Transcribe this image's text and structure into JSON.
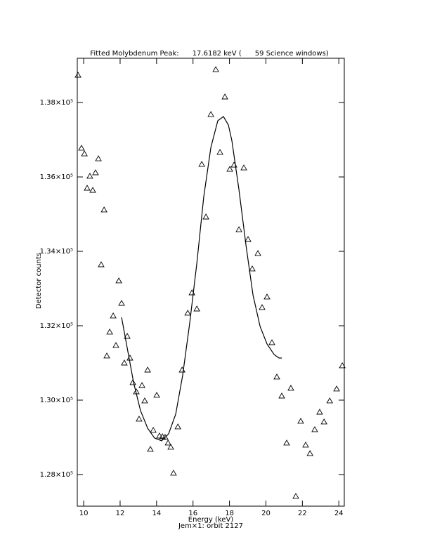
{
  "chart_data": {
    "type": "scatter",
    "title": "Fitted Molybdenum Peak:      17.6182 keV (      59 Science windows)",
    "x_label": "Energy (keV)",
    "subtitle": "Jem×1: orbit 2127",
    "y_label": "Detector counts",
    "xlim": [
      9.65,
      24.3
    ],
    "ylim": [
      127150,
      139190
    ],
    "xticks": [
      10,
      12,
      14,
      16,
      18,
      20,
      22,
      24
    ],
    "yticks": [
      {
        "value": 128000,
        "label": "1.28×10⁵"
      },
      {
        "value": 130000,
        "label": "1.30×10⁵"
      },
      {
        "value": 132000,
        "label": "1.32×10⁵"
      },
      {
        "value": 134000,
        "label": "1.34×10⁵"
      },
      {
        "value": 136000,
        "label": "1.36×10⁵"
      },
      {
        "value": 138000,
        "label": "1.38×10⁵"
      }
    ],
    "grid": false,
    "series": [
      {
        "type": "scatter",
        "marker": "triangle",
        "color": "#000000",
        "x": [
          9.69,
          9.88,
          10.04,
          10.19,
          10.34,
          10.5,
          10.65,
          10.81,
          10.96,
          11.12,
          11.27,
          11.43,
          11.62,
          11.77,
          11.93,
          12.08,
          12.23,
          12.39,
          12.54,
          12.7,
          12.89,
          13.04,
          13.2,
          13.35,
          13.51,
          13.66,
          13.82,
          14.01,
          14.16,
          14.32,
          14.47,
          14.63,
          14.78,
          14.93,
          15.17,
          15.4,
          15.71,
          15.94,
          16.21,
          16.48,
          16.71,
          16.98,
          17.25,
          17.48,
          17.75,
          18.02,
          18.25,
          18.52,
          18.79,
          19.02,
          19.25,
          19.56,
          19.79,
          20.06,
          20.33,
          20.6,
          20.87,
          21.14,
          21.37,
          21.64,
          21.91,
          22.18,
          22.42,
          22.68,
          22.95,
          23.19,
          23.5,
          23.88,
          24.19
        ],
        "values": [
          138737,
          136775,
          136623,
          135699,
          136020,
          135642,
          136114,
          136491,
          133642,
          135114,
          131189,
          131831,
          132265,
          131472,
          133208,
          132604,
          131000,
          131717,
          131132,
          130472,
          130226,
          129491,
          130396,
          129981,
          130811,
          128679,
          129189,
          130132,
          129038,
          129019,
          129000,
          128849,
          128736,
          128038,
          129283,
          130811,
          132340,
          132887,
          132453,
          136340,
          134925,
          137680,
          138887,
          136662,
          138152,
          136208,
          136321,
          134585,
          136245,
          134321,
          133529,
          133944,
          132491,
          132774,
          131547,
          130623,
          130113,
          128849,
          130321,
          127415,
          129434,
          128793,
          128566,
          129208,
          129679,
          129415,
          129981,
          130302,
          130925
        ]
      },
      {
        "type": "line",
        "color": "#000000",
        "x": [
          12.08,
          12.35,
          12.74,
          13.12,
          13.51,
          13.89,
          14.28,
          14.66,
          15.05,
          15.43,
          15.82,
          16.21,
          16.59,
          16.98,
          17.36,
          17.67,
          17.94,
          18.13,
          18.52,
          18.91,
          19.29,
          19.68,
          20.06,
          20.45,
          20.72,
          20.87
        ],
        "values": [
          132227,
          131510,
          130472,
          129717,
          129245,
          128981,
          128906,
          129094,
          129623,
          130660,
          132076,
          133680,
          135472,
          136793,
          137510,
          137623,
          137397,
          136981,
          135661,
          134151,
          132830,
          131981,
          131510,
          131227,
          131132,
          131132
        ]
      }
    ]
  }
}
